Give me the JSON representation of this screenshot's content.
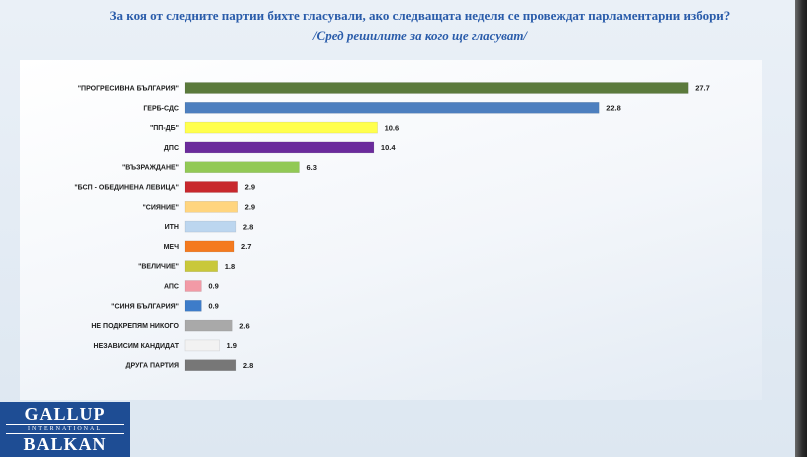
{
  "logo": {
    "line1": "GALLUP",
    "line2": "INTERNATIONAL",
    "line3": "BALKAN"
  },
  "chart_data": {
    "type": "bar",
    "orientation": "horizontal",
    "title": "За коя от следните партии бихте  гласували,  ако следващата неделя се провеждат парламентарни избори?",
    "subtitle": "/Сред решилите за кого ще гласуват/",
    "xlabel": "",
    "ylabel": "",
    "xlim": [
      0,
      30
    ],
    "grid": false,
    "legend": "none",
    "data_labels": true,
    "categories": [
      "\"ПРОГРЕСИВНА БЪЛГАРИЯ\"",
      "ГЕРБ-СДС",
      "\"ПП-ДБ\"",
      "ДПС",
      "\"ВЪЗРАЖДАНЕ\"",
      "\"БСП - ОБЕДИНЕНА ЛЕВИЦА\"",
      "\"СИЯНИЕ\"",
      "ИТН",
      "МЕЧ",
      "\"ВЕЛИЧИЕ\"",
      "АПС",
      "\"СИНЯ БЪЛГАРИЯ\"",
      "НЕ ПОДКРЕПЯМ НИКОГО",
      "НЕЗАВИСИМ КАНДИДАТ",
      "ДРУГА ПАРТИЯ"
    ],
    "values": [
      27.7,
      22.8,
      10.6,
      10.4,
      6.3,
      2.9,
      2.9,
      2.8,
      2.7,
      1.8,
      0.9,
      0.9,
      2.6,
      1.9,
      2.8
    ],
    "colors": [
      "#5b7a3c",
      "#4d7fbf",
      "#ffff4d",
      "#6b2b9c",
      "#92c955",
      "#c8282d",
      "#ffd57f",
      "#bcd6ef",
      "#f47a1f",
      "#c9c83b",
      "#f29aa6",
      "#3d7cc9",
      "#a9a9a9",
      "#f2f2f2",
      "#777777"
    ]
  }
}
